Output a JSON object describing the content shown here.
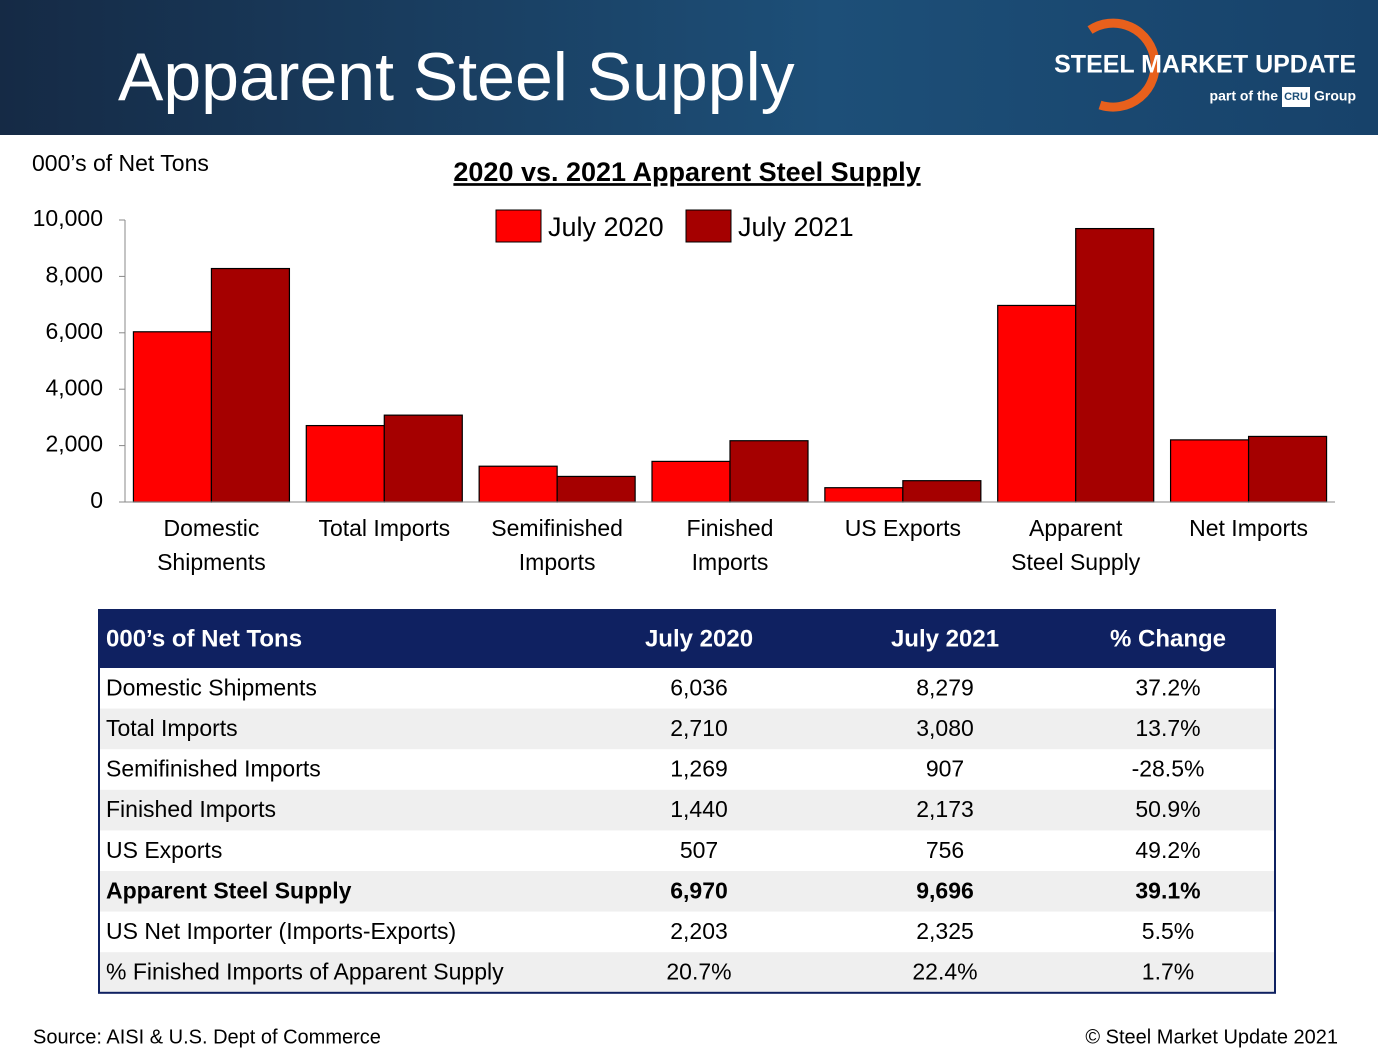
{
  "header": {
    "title": "Apparent Steel Supply",
    "logo": {
      "name": "STEEL MARKET UPDATE",
      "tagline": "part of the",
      "badge": "CRU",
      "group": "Group"
    }
  },
  "chart_data": {
    "type": "bar",
    "title": "2020 vs. 2021 Apparent Steel Supply",
    "y_label": "000’s of Net Tons",
    "categories": [
      "Domestic\nShipments",
      "Total Imports",
      "Semifinished\nImports",
      "Finished\nImports",
      "US Exports",
      "Apparent\nSteel Supply",
      "Net Imports"
    ],
    "series": [
      {
        "name": "July 2020",
        "color": "#ff0000",
        "values": [
          6036,
          2710,
          1269,
          1440,
          507,
          6970,
          2203
        ]
      },
      {
        "name": "July 2021",
        "color": "#a50000",
        "values": [
          8279,
          3080,
          907,
          2173,
          756,
          9696,
          2325
        ]
      }
    ],
    "ylim": [
      0,
      10000
    ],
    "yticks": [
      0,
      {
        "value": 2000,
        "label": "2,000"
      },
      {
        "value": 4000,
        "label": "4,000"
      },
      {
        "value": 6000,
        "label": "6,000"
      },
      {
        "value": 8000,
        "label": "8,000"
      },
      {
        "value": 10000,
        "label": "10,000"
      }
    ],
    "legend": "top"
  },
  "table": {
    "header": [
      "000’s of Net Tons",
      "July 2020",
      "July 2021",
      "% Change"
    ],
    "rows": [
      [
        "Domestic Shipments",
        "6,036",
        "8,279",
        "37.2%"
      ],
      [
        "Total Imports",
        "2,710",
        "3,080",
        "13.7%"
      ],
      [
        "Semifinished Imports",
        "1,269",
        "907",
        "-28.5%"
      ],
      [
        "Finished Imports",
        "1,440",
        "2,173",
        "50.9%"
      ],
      [
        "US Exports",
        "507",
        "756",
        "49.2%"
      ],
      [
        "Apparent Steel Supply",
        "6,970",
        "9,696",
        "39.1%"
      ],
      [
        "US Net Importer (Imports-Exports)",
        "2,203",
        "2,325",
        "5.5%"
      ],
      [
        "% Finished Imports of Apparent Supply",
        "20.7%",
        "22.4%",
        "1.7%"
      ]
    ]
  },
  "footer": {
    "source": "Source:  AISI & U.S. Dept of Commerce",
    "copyright": "©   Steel Market Update 2021"
  }
}
